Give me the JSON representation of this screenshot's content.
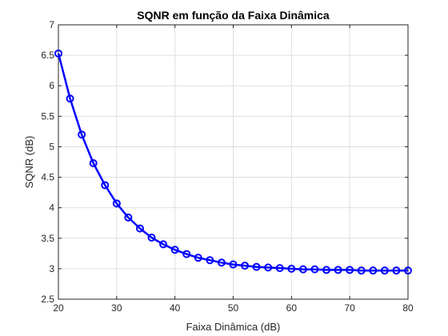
{
  "chart_data": {
    "type": "line",
    "title": "SQNR em função da Faixa Dinâmica",
    "xlabel": "Faixa Dinâmica (dB)",
    "ylabel": "SQNR (dB)",
    "xlim": [
      20,
      80
    ],
    "ylim": [
      2.5,
      7
    ],
    "xticks": [
      "20",
      "30",
      "40",
      "50",
      "60",
      "70",
      "80"
    ],
    "yticks": [
      "2.5",
      "3",
      "3.5",
      "4",
      "4.5",
      "5",
      "5.5",
      "6",
      "6.5",
      "7"
    ],
    "grid": true,
    "series": [
      {
        "name": "SQNR",
        "color": "#0000ff",
        "marker": "circle",
        "x": [
          20,
          22,
          24,
          26,
          28,
          30,
          32,
          34,
          36,
          38,
          40,
          42,
          44,
          46,
          48,
          50,
          52,
          54,
          56,
          58,
          60,
          62,
          64,
          66,
          68,
          70,
          72,
          74,
          76,
          78,
          80
        ],
        "y": [
          6.53,
          5.79,
          5.2,
          4.73,
          4.37,
          4.07,
          3.84,
          3.66,
          3.51,
          3.4,
          3.31,
          3.24,
          3.18,
          3.14,
          3.1,
          3.07,
          3.05,
          3.03,
          3.02,
          3.01,
          3.0,
          2.99,
          2.99,
          2.98,
          2.98,
          2.98,
          2.97,
          2.97,
          2.97,
          2.97,
          2.97
        ]
      }
    ]
  }
}
